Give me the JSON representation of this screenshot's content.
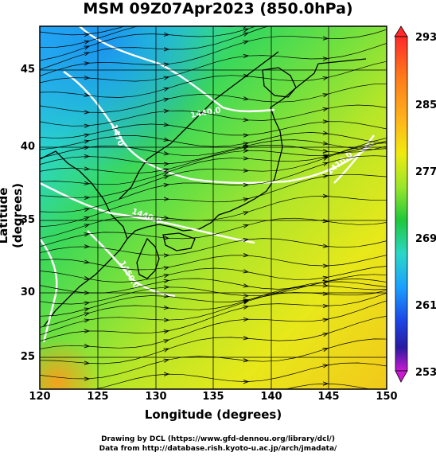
{
  "title": "MSM 09Z07Apr2023 (850.0hPa)",
  "axes": {
    "xlabel": "Longitude (degrees)",
    "ylabel": "Latitude  (degrees)",
    "x_ticks": [
      "120",
      "125",
      "130",
      "135",
      "140",
      "145",
      "150"
    ],
    "y_ticks": [
      "45",
      "40",
      "35",
      "30",
      "25"
    ]
  },
  "colorbar": {
    "ticks": [
      "293",
      "285",
      "277",
      "269",
      "261",
      "253"
    ],
    "colors": [
      "#ff2a2a",
      "#ff9a1a",
      "#f0ea10",
      "#9ae62a",
      "#1ec83c",
      "#2ad7c8",
      "#1aa0ff",
      "#1a46e6",
      "#2a1aa0",
      "#c81ad2"
    ]
  },
  "contour_labels": [
    "1470",
    "1440.0",
    "1440.0",
    "1410.0",
    "1450.0"
  ],
  "credits": {
    "line1": "Drawing by DCL (https://www.gfd-dennou.org/library/dcl/)",
    "line2": "Data from http://database.rish.kyoto-u.ac.jp/arch/jmadata/"
  }
}
